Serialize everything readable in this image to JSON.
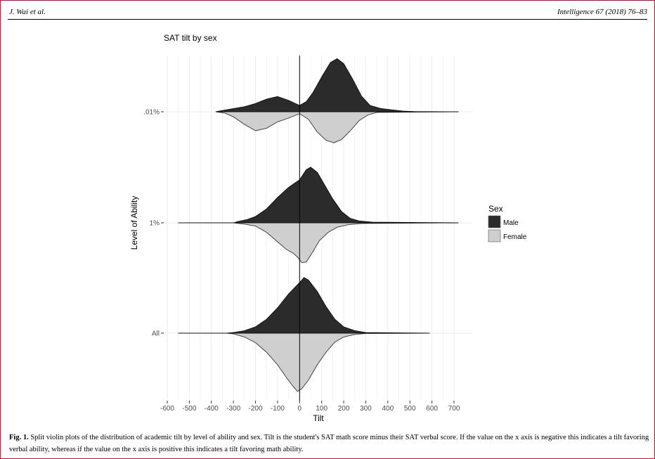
{
  "header": {
    "authors": "J. Wai et al.",
    "journal": "Intelligence 67 (2018) 76–83"
  },
  "caption": {
    "label": "Fig. 1.",
    "text": "Split violin plots of the distribution of academic tilt by level of ability and sex. Tilt is the student's SAT math score minus their SAT verbal score. If the value on the x axis is negative this indicates a tilt favoring verbal ability, whereas if the value on the x axis is positive this indicates a tilt favoring math ability."
  },
  "colors": {
    "male": "#2b2b2b",
    "female": "#cfcfcf",
    "grid": "#ebebeb",
    "axis_text": "#4d4d4d"
  },
  "chart_data": {
    "type": "split-violin",
    "title": "SAT tilt by sex",
    "xlabel": "Tilt",
    "ylabel": "Level of Ability",
    "xlim": [
      -600,
      730
    ],
    "xticks": [
      -600,
      -500,
      -400,
      -300,
      -200,
      -100,
      0,
      100,
      200,
      300,
      400,
      500,
      600,
      700
    ],
    "categories": [
      ".01%",
      "1%",
      "All"
    ],
    "grid": true,
    "legend": {
      "title": "Sex",
      "position": "right",
      "entries": [
        "Male",
        "Female"
      ]
    },
    "groups": [
      {
        "level": ".01%",
        "range": [
          -380,
          720
        ],
        "male_density": [
          [
            -380,
            0
          ],
          [
            -350,
            0.02
          ],
          [
            -300,
            0.05
          ],
          [
            -250,
            0.08
          ],
          [
            -200,
            0.13
          ],
          [
            -150,
            0.2
          ],
          [
            -100,
            0.24
          ],
          [
            -50,
            0.18
          ],
          [
            0,
            0.1
          ],
          [
            30,
            0.16
          ],
          [
            60,
            0.3
          ],
          [
            100,
            0.55
          ],
          [
            140,
            0.78
          ],
          [
            170,
            0.84
          ],
          [
            200,
            0.76
          ],
          [
            240,
            0.52
          ],
          [
            280,
            0.25
          ],
          [
            320,
            0.1
          ],
          [
            370,
            0.05
          ],
          [
            420,
            0.03
          ],
          [
            470,
            0.01
          ],
          [
            520,
            0.003
          ],
          [
            720,
            0
          ]
        ],
        "female_density": [
          [
            -380,
            0
          ],
          [
            -340,
            0.02
          ],
          [
            -300,
            0.08
          ],
          [
            -250,
            0.2
          ],
          [
            -200,
            0.3
          ],
          [
            -150,
            0.26
          ],
          [
            -100,
            0.16
          ],
          [
            -50,
            0.1
          ],
          [
            0,
            0.03
          ],
          [
            40,
            0.12
          ],
          [
            80,
            0.32
          ],
          [
            120,
            0.45
          ],
          [
            155,
            0.49
          ],
          [
            190,
            0.44
          ],
          [
            230,
            0.3
          ],
          [
            270,
            0.14
          ],
          [
            310,
            0.05
          ],
          [
            350,
            0.01
          ],
          [
            720,
            0
          ]
        ]
      },
      {
        "level": "1%",
        "range": [
          -550,
          720
        ],
        "male_density": [
          [
            -550,
            0
          ],
          [
            -300,
            0
          ],
          [
            -280,
            0.02
          ],
          [
            -240,
            0.05
          ],
          [
            -200,
            0.1
          ],
          [
            -150,
            0.22
          ],
          [
            -100,
            0.4
          ],
          [
            -50,
            0.56
          ],
          [
            0,
            0.68
          ],
          [
            30,
            0.84
          ],
          [
            50,
            0.88
          ],
          [
            80,
            0.8
          ],
          [
            110,
            0.62
          ],
          [
            150,
            0.38
          ],
          [
            190,
            0.18
          ],
          [
            230,
            0.07
          ],
          [
            270,
            0.03
          ],
          [
            330,
            0.01
          ],
          [
            720,
            0
          ]
        ],
        "female_density": [
          [
            -550,
            0
          ],
          [
            -300,
            0
          ],
          [
            -250,
            0.02
          ],
          [
            -200,
            0.05
          ],
          [
            -150,
            0.15
          ],
          [
            -100,
            0.3
          ],
          [
            -60,
            0.42
          ],
          [
            -30,
            0.48
          ],
          [
            -10,
            0.54
          ],
          [
            10,
            0.63
          ],
          [
            30,
            0.62
          ],
          [
            60,
            0.46
          ],
          [
            90,
            0.28
          ],
          [
            130,
            0.15
          ],
          [
            170,
            0.07
          ],
          [
            220,
            0.03
          ],
          [
            280,
            0.01
          ],
          [
            720,
            0
          ]
        ]
      },
      {
        "level": "All",
        "range": [
          -550,
          590
        ],
        "male_density": [
          [
            -550,
            0
          ],
          [
            -330,
            0
          ],
          [
            -300,
            0.01
          ],
          [
            -250,
            0.04
          ],
          [
            -200,
            0.1
          ],
          [
            -150,
            0.22
          ],
          [
            -100,
            0.4
          ],
          [
            -50,
            0.62
          ],
          [
            0,
            0.8
          ],
          [
            20,
            0.88
          ],
          [
            40,
            0.84
          ],
          [
            80,
            0.66
          ],
          [
            120,
            0.42
          ],
          [
            160,
            0.22
          ],
          [
            200,
            0.1
          ],
          [
            250,
            0.04
          ],
          [
            300,
            0.01
          ],
          [
            590,
            0
          ]
        ],
        "female_density": [
          [
            -550,
            0
          ],
          [
            -330,
            0
          ],
          [
            -300,
            0.01
          ],
          [
            -250,
            0.06
          ],
          [
            -200,
            0.15
          ],
          [
            -150,
            0.3
          ],
          [
            -100,
            0.5
          ],
          [
            -60,
            0.7
          ],
          [
            -30,
            0.84
          ],
          [
            -10,
            0.92
          ],
          [
            10,
            0.88
          ],
          [
            40,
            0.74
          ],
          [
            80,
            0.5
          ],
          [
            120,
            0.3
          ],
          [
            160,
            0.14
          ],
          [
            200,
            0.06
          ],
          [
            250,
            0.02
          ],
          [
            300,
            0.005
          ],
          [
            590,
            0
          ]
        ]
      }
    ]
  }
}
